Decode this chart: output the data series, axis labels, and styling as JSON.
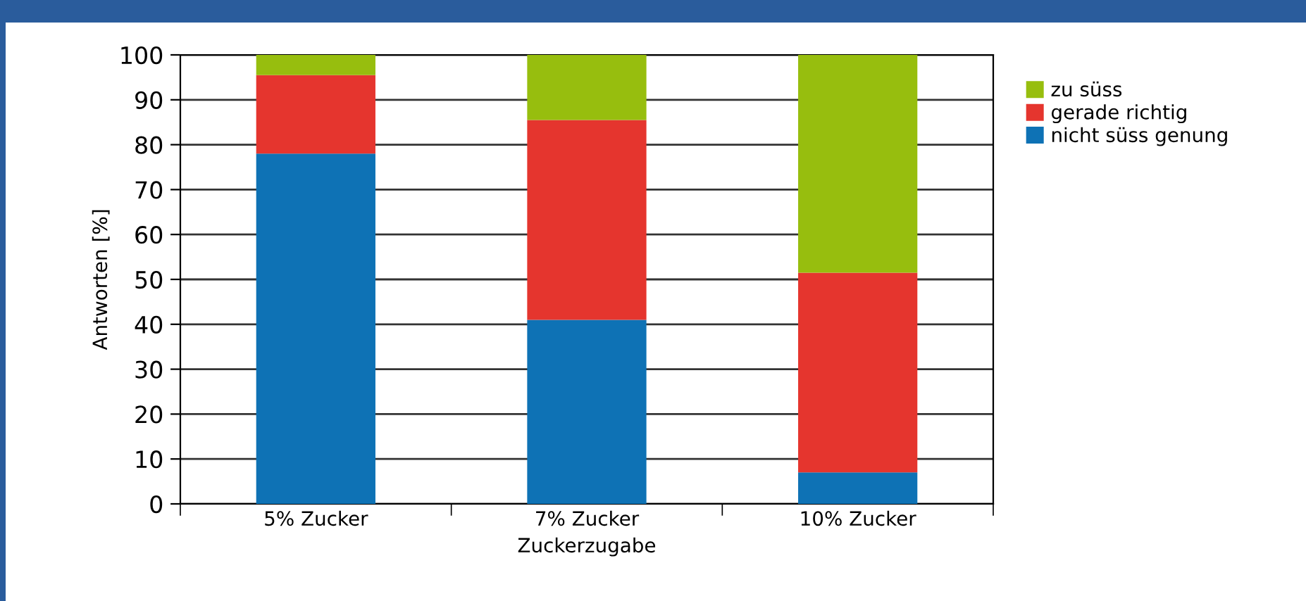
{
  "chart_data": {
    "type": "bar",
    "stacked": true,
    "xlabel": "Zuckerzugabe",
    "ylabel": "Antworten [%]",
    "categories": [
      "5% Zucker",
      "7% Zucker",
      "10% Zucker"
    ],
    "series": [
      {
        "name": "nicht süss genung",
        "color": "#0e72b5",
        "values": [
          78,
          41,
          7
        ]
      },
      {
        "name": "gerade richtig",
        "color": "#e5352e",
        "values": [
          17.5,
          44.5,
          44.5
        ]
      },
      {
        "name": "zu süss",
        "color": "#97be0e",
        "values": [
          4.5,
          14.5,
          48.5
        ]
      }
    ],
    "ylim": [
      0,
      100
    ],
    "yticks": [
      0,
      10,
      20,
      30,
      40,
      50,
      60,
      70,
      80,
      90,
      100
    ],
    "grid": "y",
    "legend": "right"
  }
}
